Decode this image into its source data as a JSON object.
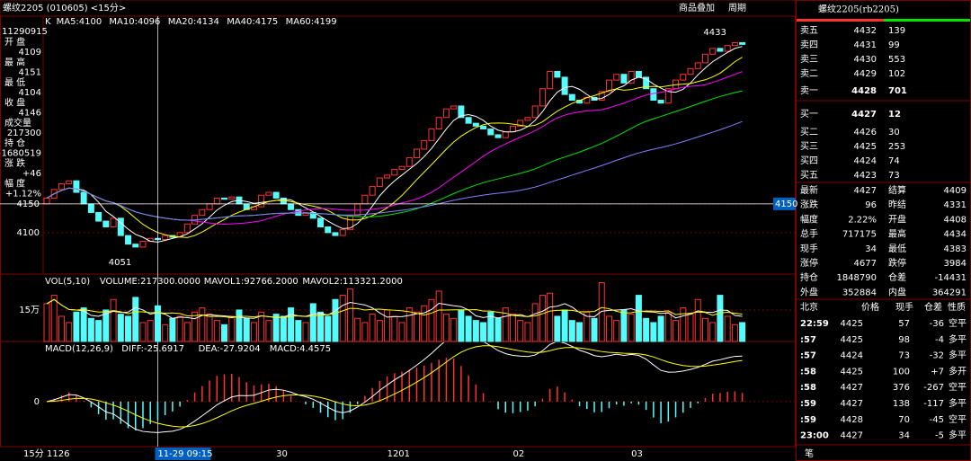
{
  "header": {
    "title": "螺纹2205 (010605) <15分>",
    "buttons": [
      "商品叠加",
      "周期"
    ]
  },
  "chart_data": {
    "type": "candlestick",
    "legend": [
      {
        "name": "K",
        "color": "#ffffff"
      },
      {
        "name": "MA5:4100",
        "period": 5,
        "color": "#ffffff"
      },
      {
        "name": "MA10:4096",
        "period": 10,
        "color": "#ffff00"
      },
      {
        "name": "MA20:4134",
        "period": 20,
        "color": "#ff00ff"
      },
      {
        "name": "MA40:4175",
        "period": 40,
        "color": "#00e600"
      },
      {
        "name": "MA60:4199",
        "period": 60,
        "color": "#8080ff"
      }
    ],
    "info": {
      "time": "11290915",
      "items": [
        {
          "label": "开 盘",
          "value": "4109",
          "color": "#ff3232"
        },
        {
          "label": "最 高",
          "value": "4151",
          "color": "#ff3232"
        },
        {
          "label": "最 低",
          "value": "4104",
          "color": "#ff3232"
        },
        {
          "label": "收 盘",
          "value": "4146",
          "color": "#ff3232"
        },
        {
          "label": "成交量",
          "value": "217300",
          "color": "#ffff00"
        },
        {
          "label": "持 仓",
          "value": "1680519",
          "color": "#ffff00"
        },
        {
          "label": "涨 跌",
          "value": "+46",
          "color": "#ff3232"
        },
        {
          "label": "幅 度",
          "value": "+1.12%",
          "color": "#ff3232"
        }
      ]
    },
    "ylim": [
      4028,
      4476
    ],
    "yticks": [
      4100,
      4150
    ],
    "open0": 4150,
    "closes": [
      4160,
      4175,
      4185,
      4190,
      4170,
      4150,
      4135,
      4120,
      4110,
      4125,
      4095,
      4080,
      4075,
      4085,
      4090,
      4088,
      4095,
      4092,
      4100,
      4115,
      4130,
      4140,
      4150,
      4160,
      4158,
      4162,
      4150,
      4140,
      4145,
      4165,
      4170,
      4160,
      4150,
      4140,
      4130,
      4135,
      4125,
      4110,
      4100,
      4095,
      4105,
      4130,
      4150,
      4165,
      4180,
      4195,
      4200,
      4210,
      4215,
      4230,
      4245,
      4260,
      4280,
      4300,
      4315,
      4320,
      4300,
      4290,
      4285,
      4280,
      4270,
      4265,
      4275,
      4285,
      4295,
      4300,
      4320,
      4350,
      4380,
      4370,
      4340,
      4330,
      4325,
      4335,
      4330,
      4345,
      4365,
      4375,
      4360,
      4380,
      4370,
      4350,
      4330,
      4325,
      4350,
      4365,
      4375,
      4385,
      4395,
      4410,
      4420,
      4415,
      4425,
      4430,
      4427
    ],
    "annotations": {
      "high": "4433",
      "low": "4051",
      "crosshair": 4150
    },
    "x_labels": [
      {
        "label": "15分",
        "at": null
      },
      {
        "label": "1126",
        "at": 0
      },
      {
        "label": "11-29 09:15",
        "at": 15
      },
      {
        "label": "30",
        "at": 31
      },
      {
        "label": "1201",
        "at": 46
      },
      {
        "label": "02",
        "at": 63
      },
      {
        "label": "03",
        "at": 79
      }
    ],
    "volume": {
      "legend": [
        "VOL(5,10)",
        "VOLUME:217300.0000",
        "MAVOL1:92766.2000",
        "MAVOL2:113321.2000"
      ],
      "ylim": [
        0,
        32.1
      ],
      "yticks": [
        {
          "value": 15,
          "label": "15万"
        }
      ],
      "values": [
        18,
        22,
        12,
        9,
        14,
        16,
        11,
        10,
        15,
        20,
        13,
        12,
        21,
        9,
        10,
        17,
        8,
        11,
        12,
        9,
        14,
        16,
        13,
        10,
        8,
        12,
        15,
        11,
        9,
        14,
        10,
        13,
        12,
        16,
        10,
        9,
        18,
        14,
        12,
        20,
        22,
        25,
        11,
        9,
        13,
        10,
        15,
        12,
        9,
        16,
        14,
        17,
        20,
        24,
        13,
        11,
        15,
        12,
        10,
        9,
        14,
        11,
        16,
        13,
        10,
        9,
        18,
        22,
        23,
        12,
        15,
        10,
        9,
        14,
        11,
        28,
        12,
        10,
        15,
        13,
        22,
        11,
        9,
        12,
        14,
        10,
        16,
        13,
        20,
        11,
        9,
        22,
        12,
        8,
        9
      ]
    },
    "macd": {
      "legend": [
        "MACD(12,26,9)",
        "DIFF:-25.6917",
        "DEA:-27.9204",
        "MACD:4.4575"
      ],
      "ylim": [
        -30,
        40
      ],
      "yticks": [
        0
      ]
    }
  },
  "panel": {
    "title": "螺纹2205(rb2205)",
    "asks": [
      {
        "label": "卖五",
        "price": 4432,
        "vol": 139
      },
      {
        "label": "卖四",
        "price": 4431,
        "vol": 99
      },
      {
        "label": "卖三",
        "price": 4430,
        "vol": 553
      },
      {
        "label": "卖二",
        "price": 4429,
        "vol": 102
      },
      {
        "label": "卖一",
        "price": 4428,
        "vol": 701
      }
    ],
    "bids": [
      {
        "label": "买一",
        "price": 4427,
        "vol": 12
      },
      {
        "label": "买二",
        "price": 4426,
        "vol": 30
      },
      {
        "label": "买三",
        "price": 4425,
        "vol": 253
      },
      {
        "label": "买四",
        "price": 4424,
        "vol": 74
      },
      {
        "label": "买五",
        "price": 4423,
        "vol": 73
      }
    ],
    "stats": [
      [
        {
          "t": "最新"
        },
        {
          "t": "4427",
          "c": "#ff3232"
        },
        {
          "t": "结算"
        },
        {
          "t": "4409",
          "c": "#ff3232"
        }
      ],
      [
        {
          "t": "涨跌"
        },
        {
          "t": "96",
          "c": "#ff3232"
        },
        {
          "t": "昨结"
        },
        {
          "t": "4331",
          "c": "#ffffff"
        }
      ],
      [
        {
          "t": "幅度"
        },
        {
          "t": "2.22%",
          "c": "#ff3232"
        },
        {
          "t": "开盘"
        },
        {
          "t": "4408",
          "c": "#ff3232"
        }
      ],
      [
        {
          "t": "总手"
        },
        {
          "t": "717175",
          "c": "#ffff00"
        },
        {
          "t": "最高"
        },
        {
          "t": "4434",
          "c": "#ff3232"
        }
      ],
      [
        {
          "t": "现手"
        },
        {
          "t": "34",
          "c": "#ffff00"
        },
        {
          "t": "最低"
        },
        {
          "t": "4383",
          "c": "#ff3232"
        }
      ],
      [
        {
          "t": "涨停"
        },
        {
          "t": "4677",
          "c": "#ff3232"
        },
        {
          "t": "跌停"
        },
        {
          "t": "3984",
          "c": "#00e600"
        }
      ],
      [
        {
          "t": "持仓"
        },
        {
          "t": "1848790",
          "c": "#ffff00"
        },
        {
          "t": "仓差"
        },
        {
          "t": "-14431",
          "c": "#ffff00"
        }
      ],
      [
        {
          "t": "外盘"
        },
        {
          "t": "352884",
          "c": "#ff3232"
        },
        {
          "t": "内盘"
        },
        {
          "t": "364291",
          "c": "#00e600"
        }
      ]
    ],
    "trades_header": [
      "北京",
      "价格",
      "现手",
      "仓差",
      "性质"
    ],
    "trades": [
      {
        "time": "22:59",
        "price": 4425,
        "vol": 57,
        "diff": "-36",
        "kind": "空平",
        "color": "#ff3232"
      },
      {
        "time": ":57",
        "price": 4425,
        "vol": 98,
        "diff": "-4",
        "kind": "多平",
        "color": "#00e600"
      },
      {
        "time": ":57",
        "price": 4424,
        "vol": 73,
        "diff": "-32",
        "kind": "多平",
        "color": "#00e600"
      },
      {
        "time": ":58",
        "price": 4425,
        "vol": 100,
        "diff": "+7",
        "kind": "多开",
        "color": "#ff3232"
      },
      {
        "time": ":58",
        "price": 4427,
        "vol": 376,
        "diff": "-267",
        "kind": "空平",
        "color": "#ff3232"
      },
      {
        "time": ":59",
        "price": 4427,
        "vol": 138,
        "diff": "-117",
        "kind": "多平",
        "color": "#00e600"
      },
      {
        "time": ":59",
        "price": 4428,
        "vol": 70,
        "diff": "-45",
        "kind": "空平",
        "color": "#ff3232"
      },
      {
        "time": "23:00",
        "price": 4427,
        "vol": 34,
        "diff": "-5",
        "kind": "多平",
        "color": "#00e600"
      }
    ],
    "footer": "笔"
  }
}
